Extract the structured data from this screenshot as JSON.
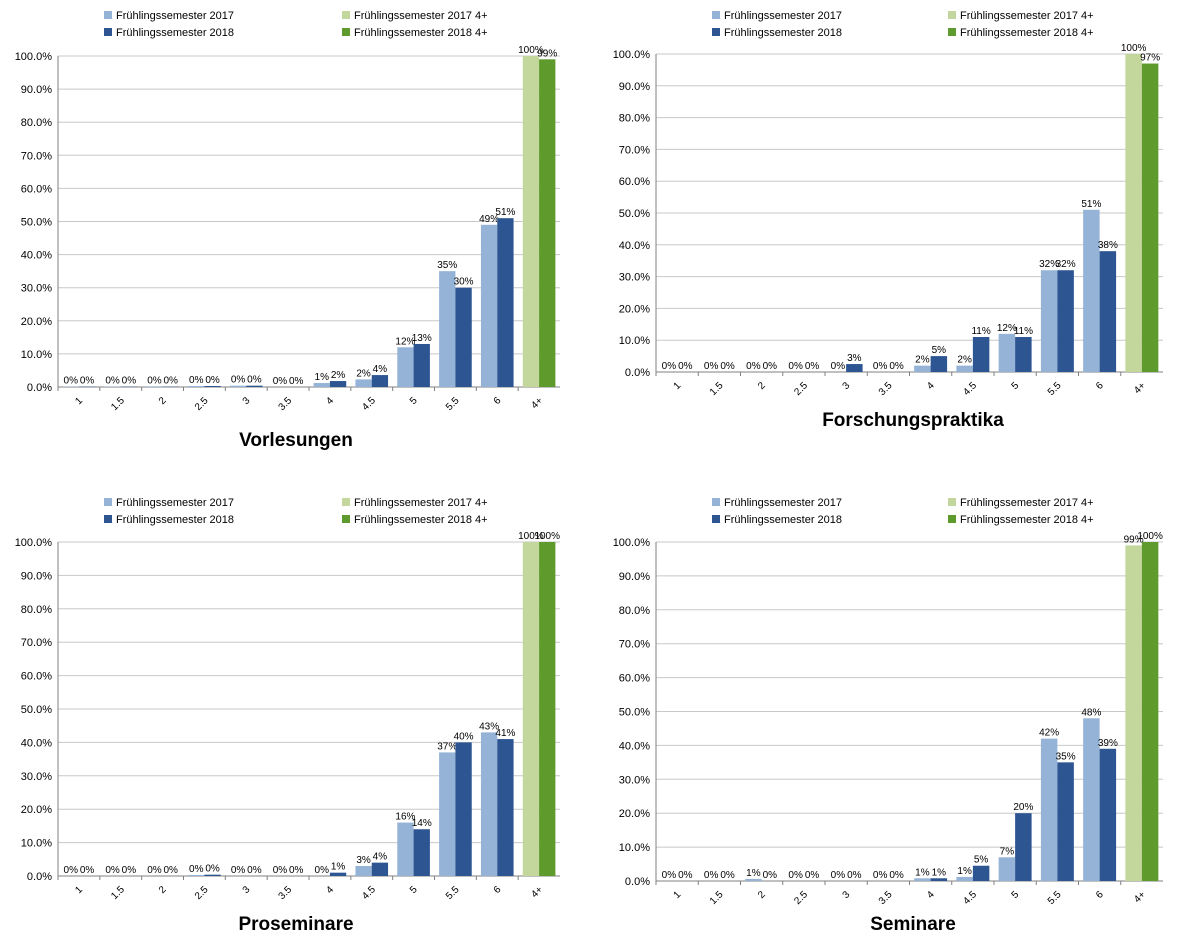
{
  "colors": {
    "fs2017": "#95b3d7",
    "fs2018": "#2c5592",
    "fs2017_4": "#c3d69b",
    "fs2018_4": "#5f9a2c",
    "grid": "#c8c8c8",
    "axis": "#808080"
  },
  "legend_labels": [
    "Frühlingssemester 2017",
    "Frühlingssemester 2018",
    "Frühlingssemester 2017 4+",
    "Frühlingssemester 2018 4+"
  ],
  "chart_data": [
    {
      "type": "bar",
      "title": "Vorlesungen",
      "categories": [
        "1",
        "1.5",
        "2",
        "2.5",
        "3",
        "3.5",
        "4",
        "4.5",
        "5",
        "5.5",
        "6",
        "4+"
      ],
      "ylim": [
        0,
        100
      ],
      "yticks": [
        "0.0%",
        "10.0%",
        "20.0%",
        "30.0%",
        "40.0%",
        "50.0%",
        "60.0%",
        "70.0%",
        "80.0%",
        "90.0%",
        "100.0%"
      ],
      "grid": true,
      "legend_position": "top",
      "series": [
        {
          "name": "Frühlingssemester 2017",
          "values": [
            0.1,
            0.1,
            0.2,
            0.3,
            0.4,
            0,
            1.2,
            2.3,
            12,
            35,
            49,
            null
          ],
          "labels": [
            "0%",
            "0%",
            "0%",
            "0%",
            "0%",
            "0%",
            "1%",
            "2%",
            "12%",
            "35%",
            "49%",
            ""
          ]
        },
        {
          "name": "Frühlingssemester 2018",
          "values": [
            0.1,
            0.1,
            0.1,
            0.3,
            0.4,
            0,
            1.8,
            3.6,
            13,
            30,
            51,
            null
          ],
          "labels": [
            "0%",
            "0%",
            "0%",
            "0%",
            "0%",
            "0%",
            "2%",
            "4%",
            "13%",
            "30%",
            "51%",
            ""
          ]
        },
        {
          "name": "Frühlingssemester 2017 4+",
          "values": [
            null,
            null,
            null,
            null,
            null,
            null,
            null,
            null,
            null,
            null,
            null,
            100
          ],
          "labels": [
            "",
            "",
            "",
            "",
            "",
            "",
            "",
            "",
            "",
            "",
            "",
            "100%"
          ]
        },
        {
          "name": "Frühlingssemester 2018 4+",
          "values": [
            null,
            null,
            null,
            null,
            null,
            null,
            null,
            null,
            null,
            null,
            null,
            99
          ],
          "labels": [
            "",
            "",
            "",
            "",
            "",
            "",
            "",
            "",
            "",
            "",
            "",
            "99%"
          ]
        }
      ]
    },
    {
      "type": "bar",
      "title": "Forschungspraktika",
      "categories": [
        "1",
        "1.5",
        "2",
        "2.5",
        "3",
        "3.5",
        "4",
        "4.5",
        "5",
        "5.5",
        "6",
        "4+"
      ],
      "ylim": [
        0,
        100
      ],
      "yticks": [
        "0.0%",
        "10.0%",
        "20.0%",
        "30.0%",
        "40.0%",
        "50.0%",
        "60.0%",
        "70.0%",
        "80.0%",
        "90.0%",
        "100.0%"
      ],
      "grid": true,
      "legend_position": "top",
      "series": [
        {
          "name": "Frühlingssemester 2017",
          "values": [
            0,
            0,
            0,
            0,
            0,
            0,
            2,
            2,
            12,
            32,
            51,
            null
          ],
          "labels": [
            "0%",
            "0%",
            "0%",
            "0%",
            "0%",
            "0%",
            "2%",
            "2%",
            "12%",
            "32%",
            "51%",
            ""
          ]
        },
        {
          "name": "Frühlingssemester 2018",
          "values": [
            0,
            0,
            0,
            0,
            2.5,
            0,
            5,
            11,
            11,
            32,
            38,
            null
          ],
          "labels": [
            "0%",
            "0%",
            "0%",
            "0%",
            "3%",
            "0%",
            "5%",
            "11%",
            "11%",
            "32%",
            "38%",
            ""
          ]
        },
        {
          "name": "Frühlingssemester 2017 4+",
          "values": [
            null,
            null,
            null,
            null,
            null,
            null,
            null,
            null,
            null,
            null,
            null,
            100
          ],
          "labels": [
            "",
            "",
            "",
            "",
            "",
            "",
            "",
            "",
            "",
            "",
            "",
            "100%"
          ]
        },
        {
          "name": "Frühlingssemester 2018 4+",
          "values": [
            null,
            null,
            null,
            null,
            null,
            null,
            null,
            null,
            null,
            null,
            null,
            97
          ],
          "labels": [
            "",
            "",
            "",
            "",
            "",
            "",
            "",
            "",
            "",
            "",
            "",
            "97%"
          ]
        }
      ]
    },
    {
      "type": "bar",
      "title": "Proseminare",
      "categories": [
        "1",
        "1.5",
        "2",
        "2.5",
        "3",
        "3.5",
        "4",
        "4.5",
        "5",
        "5.5",
        "6",
        "4+"
      ],
      "ylim": [
        0,
        100
      ],
      "yticks": [
        "0.0%",
        "10.0%",
        "20.0%",
        "30.0%",
        "40.0%",
        "50.0%",
        "60.0%",
        "70.0%",
        "80.0%",
        "90.0%",
        "100.0%"
      ],
      "grid": true,
      "legend_position": "top",
      "series": [
        {
          "name": "Frühlingssemester 2017",
          "values": [
            0,
            0,
            0,
            0.3,
            0,
            0,
            0,
            3,
            16,
            37,
            43,
            null
          ],
          "labels": [
            "0%",
            "0%",
            "0%",
            "0%",
            "0%",
            "0%",
            "0%",
            "3%",
            "16%",
            "37%",
            "43%",
            ""
          ]
        },
        {
          "name": "Frühlingssemester 2018",
          "values": [
            0,
            0,
            0,
            0.4,
            0,
            0,
            1,
            4,
            14,
            40,
            41,
            null
          ],
          "labels": [
            "0%",
            "0%",
            "0%",
            "0%",
            "0%",
            "0%",
            "1%",
            "4%",
            "14%",
            "40%",
            "41%",
            ""
          ]
        },
        {
          "name": "Frühlingssemester 2017 4+",
          "values": [
            null,
            null,
            null,
            null,
            null,
            null,
            null,
            null,
            null,
            null,
            null,
            100
          ],
          "labels": [
            "",
            "",
            "",
            "",
            "",
            "",
            "",
            "",
            "",
            "",
            "",
            "100%"
          ]
        },
        {
          "name": "Frühlingssemester 2018 4+",
          "values": [
            null,
            null,
            null,
            null,
            null,
            null,
            null,
            null,
            null,
            null,
            null,
            100
          ],
          "labels": [
            "",
            "",
            "",
            "",
            "",
            "",
            "",
            "",
            "",
            "",
            "",
            "100%"
          ]
        }
      ]
    },
    {
      "type": "bar",
      "title": "Seminare",
      "categories": [
        "1",
        "1.5",
        "2",
        "2.5",
        "3",
        "3.5",
        "4",
        "4.5",
        "5",
        "5.5",
        "6",
        "4+"
      ],
      "ylim": [
        0,
        100
      ],
      "yticks": [
        "0.0%",
        "10.0%",
        "20.0%",
        "30.0%",
        "40.0%",
        "50.0%",
        "60.0%",
        "70.0%",
        "80.0%",
        "90.0%",
        "100.0%"
      ],
      "grid": true,
      "legend_position": "top",
      "series": [
        {
          "name": "Frühlingssemester 2017",
          "values": [
            0,
            0,
            0.6,
            0,
            0,
            0,
            0.8,
            1.2,
            7,
            42,
            48,
            null
          ],
          "labels": [
            "0%",
            "0%",
            "1%",
            "0%",
            "0%",
            "0%",
            "1%",
            "1%",
            "7%",
            "42%",
            "48%",
            ""
          ]
        },
        {
          "name": "Frühlingssemester 2018",
          "values": [
            0,
            0,
            0,
            0,
            0,
            0,
            0.8,
            4.5,
            20,
            35,
            39,
            null
          ],
          "labels": [
            "0%",
            "0%",
            "0%",
            "0%",
            "0%",
            "0%",
            "1%",
            "5%",
            "20%",
            "35%",
            "39%",
            ""
          ]
        },
        {
          "name": "Frühlingssemester 2017 4+",
          "values": [
            null,
            null,
            null,
            null,
            null,
            null,
            null,
            null,
            null,
            null,
            null,
            99
          ],
          "labels": [
            "",
            "",
            "",
            "",
            "",
            "",
            "",
            "",
            "",
            "",
            "",
            "99%"
          ]
        },
        {
          "name": "Frühlingssemester 2018 4+",
          "values": [
            null,
            null,
            null,
            null,
            null,
            null,
            null,
            null,
            null,
            null,
            null,
            100
          ],
          "labels": [
            "",
            "",
            "",
            "",
            "",
            "",
            "",
            "",
            "",
            "",
            "",
            "100%"
          ]
        }
      ]
    }
  ]
}
